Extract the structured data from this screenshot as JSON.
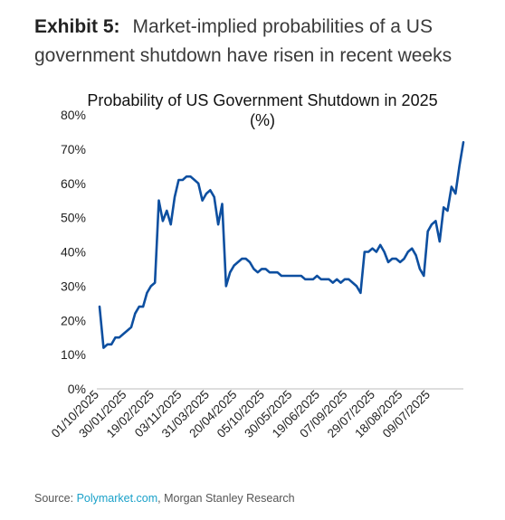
{
  "exhibit": {
    "label": "Exhibit 5:",
    "title": "Market-implied probabilities of a US government shutdown have risen in recent weeks"
  },
  "chart_data": {
    "type": "line",
    "title": "Probability of US Government Shutdown in 2025",
    "subtitle": "(%)",
    "ylim": [
      0,
      80
    ],
    "y_ticks": [
      "0%",
      "10%",
      "20%",
      "30%",
      "40%",
      "50%",
      "60%",
      "70%",
      "80%"
    ],
    "x_tick_labels": [
      "01/10/2025",
      "30/01/2025",
      "19/02/2025",
      "03/11/2025",
      "31/03/2025",
      "20/04/2025",
      "05/10/2025",
      "30/05/2025",
      "19/06/2025",
      "07/09/2025",
      "29/07/2025",
      "18/08/2025",
      "09/07/2025"
    ],
    "grid": false,
    "line_color": "#0d4fa0",
    "series": [
      {
        "values": [
          [
            0,
            24
          ],
          [
            1,
            12
          ],
          [
            2,
            13
          ],
          [
            3,
            13
          ],
          [
            4,
            15
          ],
          [
            5,
            15
          ],
          [
            6,
            16
          ],
          [
            7,
            17
          ],
          [
            8,
            18
          ],
          [
            9,
            22
          ],
          [
            10,
            24
          ],
          [
            11,
            24
          ],
          [
            12,
            28
          ],
          [
            13,
            30
          ],
          [
            14,
            31
          ],
          [
            15,
            55
          ],
          [
            16,
            49
          ],
          [
            17,
            52
          ],
          [
            18,
            48
          ],
          [
            19,
            56
          ],
          [
            20,
            61
          ],
          [
            21,
            61
          ],
          [
            22,
            62
          ],
          [
            23,
            62
          ],
          [
            24,
            61
          ],
          [
            25,
            60
          ],
          [
            26,
            55
          ],
          [
            27,
            57
          ],
          [
            28,
            58
          ],
          [
            29,
            56
          ],
          [
            30,
            48
          ],
          [
            31,
            54
          ],
          [
            32,
            30
          ],
          [
            33,
            34
          ],
          [
            34,
            36
          ],
          [
            35,
            37
          ],
          [
            36,
            38
          ],
          [
            37,
            38
          ],
          [
            38,
            37
          ],
          [
            39,
            35
          ],
          [
            40,
            34
          ],
          [
            41,
            35
          ],
          [
            42,
            35
          ],
          [
            43,
            34
          ],
          [
            44,
            34
          ],
          [
            45,
            34
          ],
          [
            46,
            33
          ],
          [
            47,
            33
          ],
          [
            48,
            33
          ],
          [
            49,
            33
          ],
          [
            50,
            33
          ],
          [
            51,
            33
          ],
          [
            52,
            32
          ],
          [
            53,
            32
          ],
          [
            54,
            32
          ],
          [
            55,
            33
          ],
          [
            56,
            32
          ],
          [
            57,
            32
          ],
          [
            58,
            32
          ],
          [
            59,
            31
          ],
          [
            60,
            32
          ],
          [
            61,
            31
          ],
          [
            62,
            32
          ],
          [
            63,
            32
          ],
          [
            64,
            31
          ],
          [
            65,
            30
          ],
          [
            66,
            28
          ],
          [
            67,
            40
          ],
          [
            68,
            40
          ],
          [
            69,
            41
          ],
          [
            70,
            40
          ],
          [
            71,
            42
          ],
          [
            72,
            40
          ],
          [
            73,
            37
          ],
          [
            74,
            38
          ],
          [
            75,
            38
          ],
          [
            76,
            37
          ],
          [
            77,
            38
          ],
          [
            78,
            40
          ],
          [
            79,
            41
          ],
          [
            80,
            39
          ],
          [
            81,
            35
          ],
          [
            82,
            33
          ],
          [
            83,
            46
          ],
          [
            84,
            48
          ],
          [
            85,
            49
          ],
          [
            86,
            43
          ],
          [
            87,
            53
          ],
          [
            88,
            52
          ],
          [
            89,
            59
          ],
          [
            90,
            57
          ],
          [
            91,
            65
          ],
          [
            92,
            72
          ]
        ]
      }
    ]
  },
  "source": {
    "prefix": "Source: ",
    "link": "Polymarket.com",
    "suffix": ", Morgan Stanley Research"
  }
}
